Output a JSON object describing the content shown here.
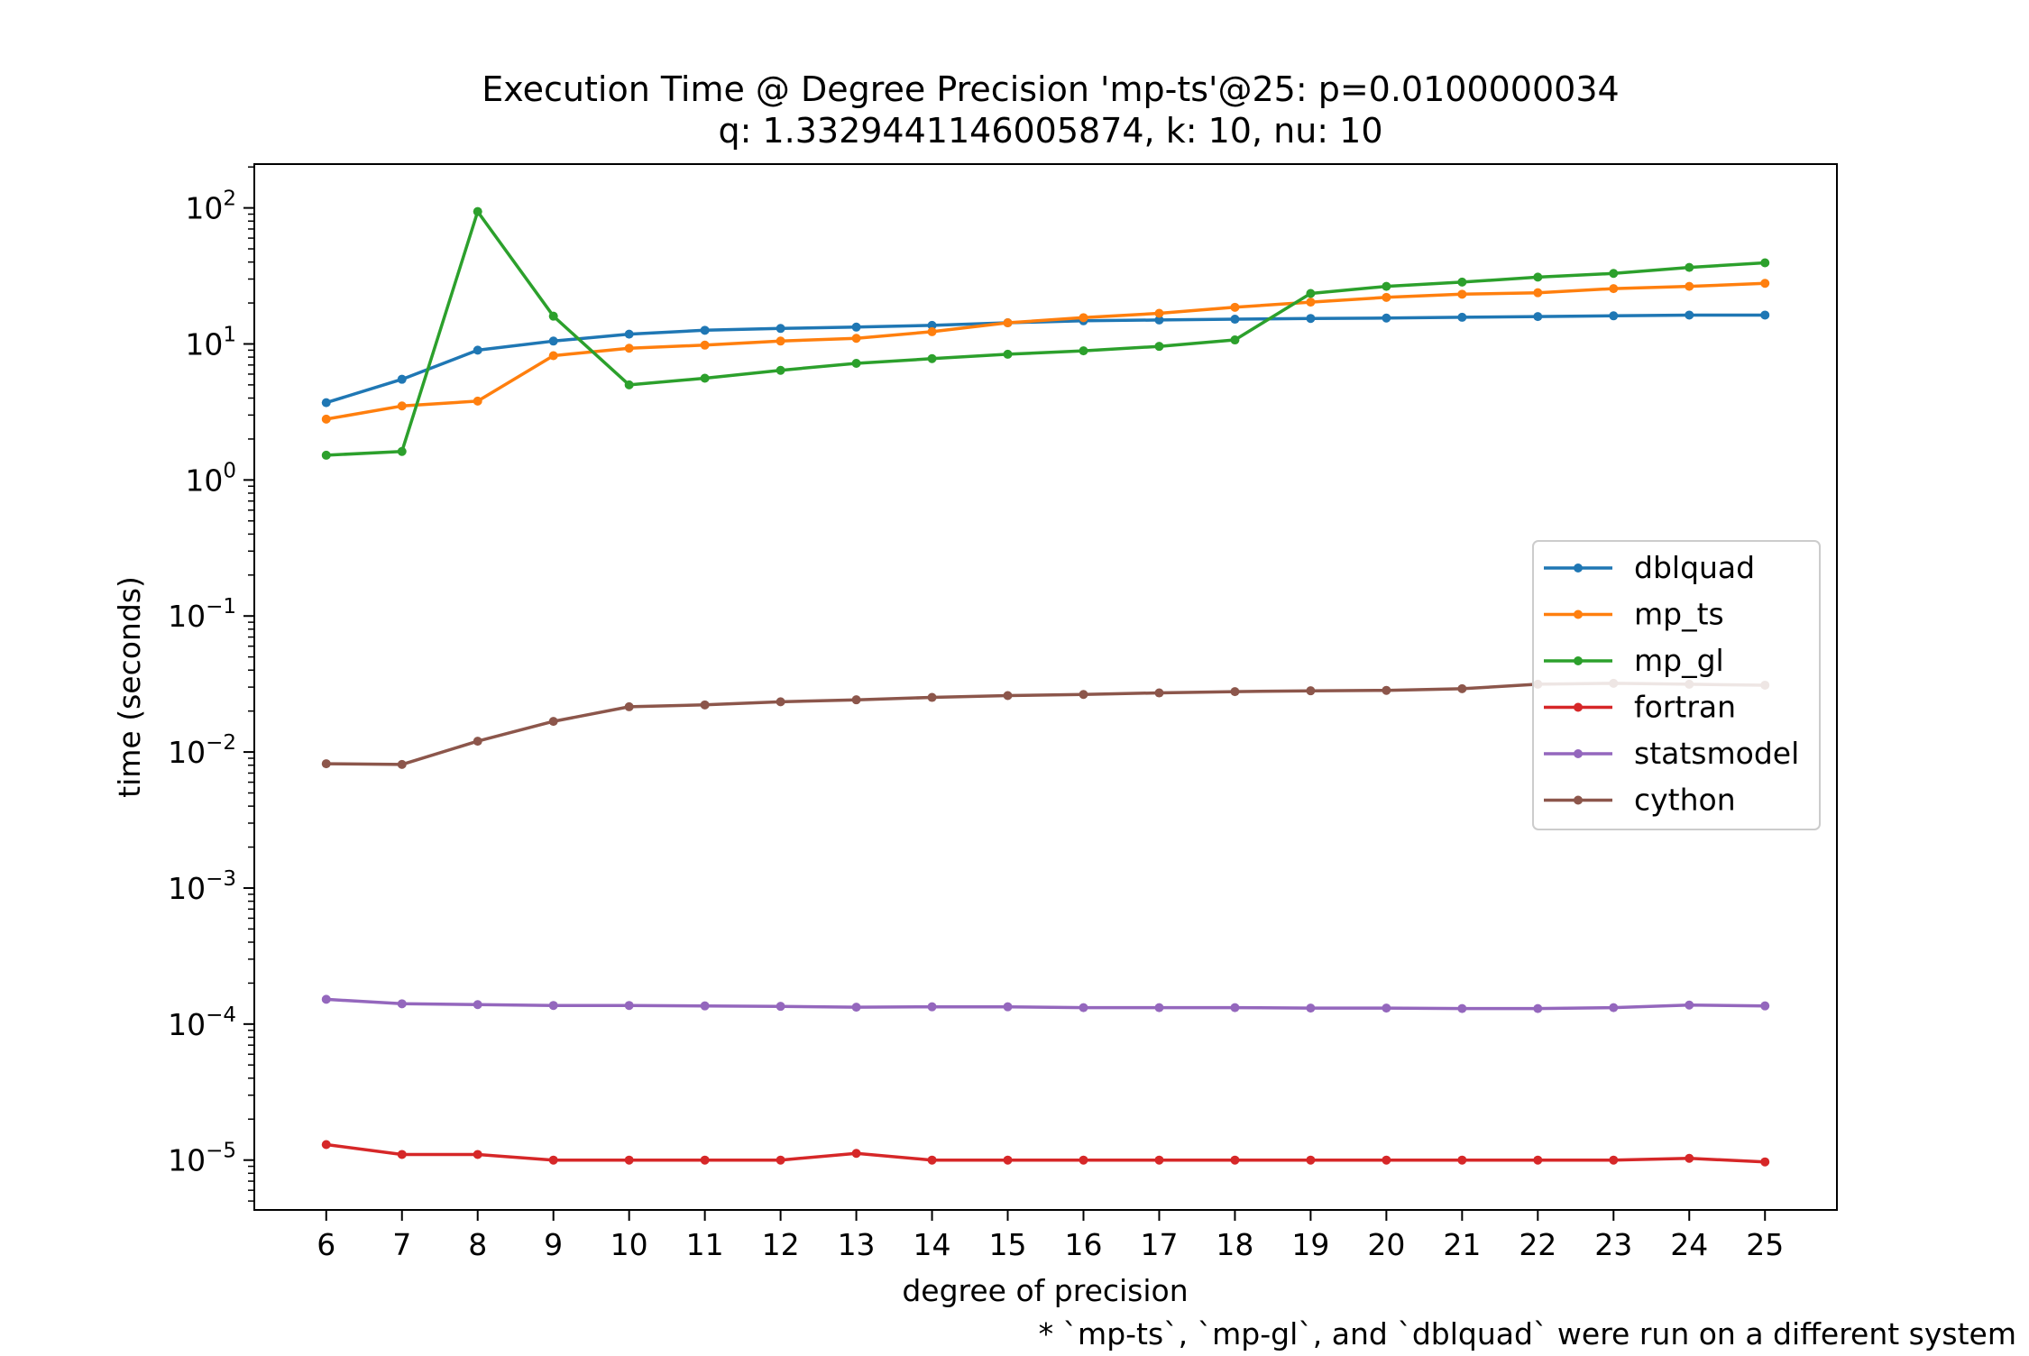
{
  "chart_data": {
    "type": "line",
    "title": "Execution Time @ Degree Precision 'mp-ts'@25: p=0.0100000034",
    "subtitle": "q: 1.3329441146005874, k: 10, nu: 10",
    "xlabel": "degree of precision",
    "ylabel": "time (seconds)",
    "yscale": "log",
    "x": [
      6,
      7,
      8,
      9,
      10,
      11,
      12,
      13,
      14,
      15,
      16,
      17,
      18,
      19,
      20,
      21,
      22,
      23,
      24,
      25
    ],
    "xlim": [
      5.05,
      25.95
    ],
    "ylim": [
      4.3e-06,
      210
    ],
    "y_ticks": [
      {
        "value": 1e-05,
        "base": "10",
        "exp": "−5"
      },
      {
        "value": 0.0001,
        "base": "10",
        "exp": "−4"
      },
      {
        "value": 0.001,
        "base": "10",
        "exp": "−3"
      },
      {
        "value": 0.01,
        "base": "10",
        "exp": "−2"
      },
      {
        "value": 0.1,
        "base": "10",
        "exp": "−1"
      },
      {
        "value": 1,
        "base": "10",
        "exp": "0"
      },
      {
        "value": 10,
        "base": "10",
        "exp": "1"
      },
      {
        "value": 100,
        "base": "10",
        "exp": "2"
      }
    ],
    "grid": false,
    "legend_position": "center-right",
    "series": [
      {
        "name": "dblquad",
        "color": "#1f77b4",
        "values": [
          3.7,
          5.5,
          9.0,
          10.5,
          11.8,
          12.6,
          13.0,
          13.3,
          13.7,
          14.3,
          14.8,
          15.0,
          15.2,
          15.4,
          15.5,
          15.7,
          15.9,
          16.1,
          16.3,
          16.3
        ]
      },
      {
        "name": "mp_ts",
        "color": "#ff7f0e",
        "values": [
          2.8,
          3.5,
          3.8,
          8.2,
          9.3,
          9.8,
          10.5,
          11.0,
          12.3,
          14.3,
          15.6,
          16.8,
          18.6,
          20.3,
          22.0,
          23.2,
          23.8,
          25.5,
          26.5,
          27.9
        ]
      },
      {
        "name": "mp_gl",
        "color": "#2ca02c",
        "values": [
          1.52,
          1.62,
          94.0,
          16.0,
          5.0,
          5.6,
          6.4,
          7.2,
          7.8,
          8.4,
          8.9,
          9.6,
          10.7,
          23.5,
          26.5,
          28.5,
          31.0,
          33.0,
          36.5,
          39.5
        ]
      },
      {
        "name": "fortran",
        "color": "#d62728",
        "values": [
          1.3e-05,
          1.1e-05,
          1.1e-05,
          1e-05,
          1e-05,
          1e-05,
          1e-05,
          1.12e-05,
          1e-05,
          1e-05,
          1e-05,
          1e-05,
          1e-05,
          1e-05,
          1e-05,
          1e-05,
          1e-05,
          1e-05,
          1.03e-05,
          9.7e-06
        ]
      },
      {
        "name": "statsmodel",
        "color": "#9467bd",
        "values": [
          0.000152,
          0.000141,
          0.000139,
          0.000137,
          0.000137,
          0.000136,
          0.000135,
          0.000133,
          0.000134,
          0.000134,
          0.000132,
          0.000132,
          0.000132,
          0.000131,
          0.000131,
          0.00013,
          0.00013,
          0.000132,
          0.000138,
          0.000136
        ]
      },
      {
        "name": "cython",
        "color": "#8c564b",
        "values": [
          0.0082,
          0.0081,
          0.012,
          0.0168,
          0.0215,
          0.0222,
          0.0234,
          0.0242,
          0.0252,
          0.026,
          0.0265,
          0.0272,
          0.0278,
          0.0282,
          0.0284,
          0.0292,
          0.0315,
          0.032,
          0.0315,
          0.031
        ]
      }
    ],
    "footnote": "* `mp-ts`, `mp-gl`, and `dblquad` were run on a different system"
  }
}
